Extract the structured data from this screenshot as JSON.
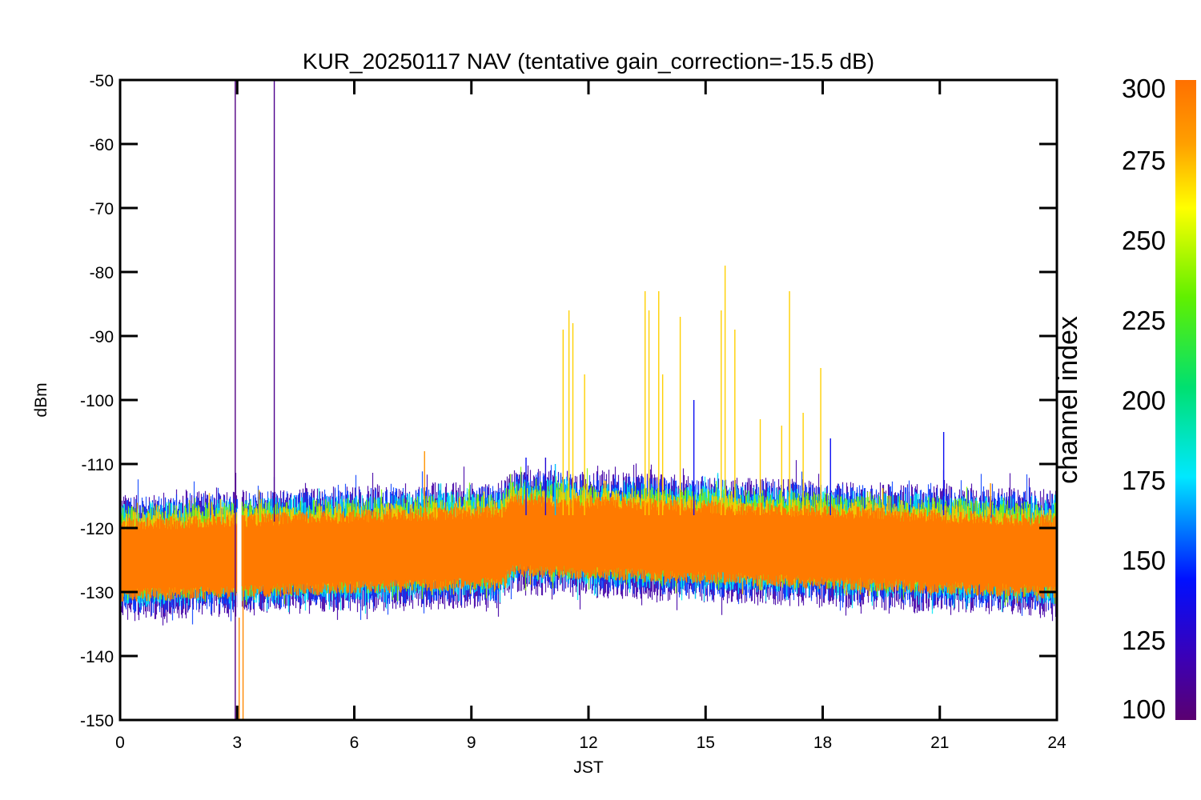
{
  "chart_data": {
    "type": "line",
    "title": "KUR_20250117 NAV (tentative gain_correction=-15.5 dB)",
    "xlabel": "JST",
    "ylabel": "dBm",
    "xlim": [
      0,
      24
    ],
    "ylim": [
      -150,
      -50
    ],
    "xticks": [
      0,
      3,
      6,
      9,
      12,
      15,
      18,
      21,
      24
    ],
    "yticks": [
      -50,
      -60,
      -70,
      -80,
      -90,
      -100,
      -110,
      -120,
      -130,
      -140,
      -150
    ],
    "grid": false,
    "colorbar": {
      "label": "channel index",
      "range": [
        100,
        300
      ],
      "ticks": [
        100,
        125,
        150,
        175,
        200,
        225,
        250,
        275,
        300
      ],
      "colormap": "rainbow (purple → blue → cyan → green → yellow → orange)"
    },
    "data_gap": {
      "x_start": 3.0,
      "x_end": 3.1
    },
    "band": {
      "center": [
        [
          0,
          -125
        ],
        [
          9.8,
          -123
        ],
        [
          10,
          -121
        ],
        [
          24,
          -124.5
        ]
      ],
      "core_half_width": 6,
      "outer_envelope": {
        "upper": -117,
        "lower": -134
      }
    },
    "spikes": [
      {
        "x": 2.95,
        "top": -50,
        "bottom": -150,
        "channel": 105
      },
      {
        "x": 3.95,
        "top": -50,
        "bottom": -119,
        "channel": 108
      },
      {
        "x": 3.05,
        "top": -118,
        "bottom": -150,
        "channel": 290
      },
      {
        "x": 3.15,
        "top": -118,
        "bottom": -150,
        "channel": 290
      },
      {
        "x": 7.8,
        "top": -108,
        "bottom": -118,
        "channel": 285
      },
      {
        "x": 10.4,
        "top": -109,
        "bottom": -118,
        "channel": 140
      },
      {
        "x": 10.9,
        "top": -109,
        "bottom": -118,
        "channel": 130
      },
      {
        "x": 11.15,
        "top": -110,
        "bottom": -118,
        "channel": 170
      },
      {
        "x": 11.35,
        "top": -89,
        "bottom": -118,
        "channel": 270
      },
      {
        "x": 11.5,
        "top": -86,
        "bottom": -118,
        "channel": 270
      },
      {
        "x": 11.6,
        "top": -88,
        "bottom": -118,
        "channel": 270
      },
      {
        "x": 11.9,
        "top": -96,
        "bottom": -118,
        "channel": 270
      },
      {
        "x": 13.45,
        "top": -83,
        "bottom": -118,
        "channel": 270
      },
      {
        "x": 13.55,
        "top": -86,
        "bottom": -118,
        "channel": 270
      },
      {
        "x": 13.8,
        "top": -83,
        "bottom": -118,
        "channel": 270
      },
      {
        "x": 13.9,
        "top": -96,
        "bottom": -118,
        "channel": 270
      },
      {
        "x": 14.35,
        "top": -87,
        "bottom": -118,
        "channel": 270
      },
      {
        "x": 14.7,
        "top": -100,
        "bottom": -118,
        "channel": 140
      },
      {
        "x": 15.4,
        "top": -86,
        "bottom": -118,
        "channel": 270
      },
      {
        "x": 15.5,
        "top": -79,
        "bottom": -118,
        "channel": 270
      },
      {
        "x": 15.75,
        "top": -89,
        "bottom": -118,
        "channel": 270
      },
      {
        "x": 16.4,
        "top": -103,
        "bottom": -118,
        "channel": 270
      },
      {
        "x": 16.95,
        "top": -104,
        "bottom": -118,
        "channel": 270
      },
      {
        "x": 17.15,
        "top": -83,
        "bottom": -118,
        "channel": 270
      },
      {
        "x": 17.5,
        "top": -102,
        "bottom": -118,
        "channel": 270
      },
      {
        "x": 17.95,
        "top": -95,
        "bottom": -118,
        "channel": 270
      },
      {
        "x": 18.2,
        "top": -106,
        "bottom": -118,
        "channel": 140
      },
      {
        "x": 21.1,
        "top": -105,
        "bottom": -118,
        "channel": 140
      },
      {
        "x": 22.3,
        "top": -113,
        "bottom": -118,
        "channel": 285
      }
    ]
  }
}
